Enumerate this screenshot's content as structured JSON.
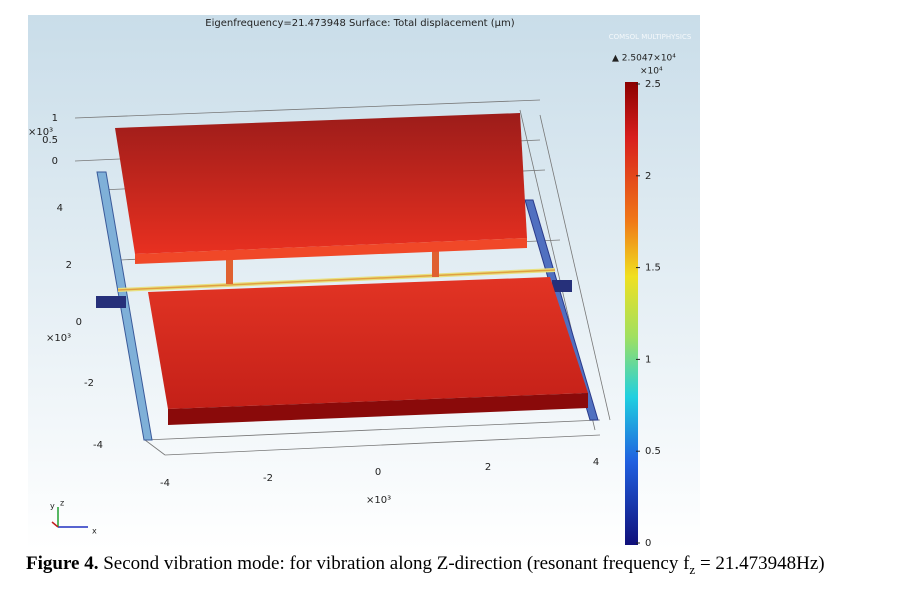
{
  "figure": {
    "title": "Eigenfrequency=21.473948  Surface: Total displacement (μm)",
    "logo": "COMSOL MULTIPHYSICS",
    "colorbar": {
      "max_label": "▲ 2.5047×10⁴",
      "multiplier": "×10⁴",
      "ticks": [
        "2.5",
        "2",
        "1.5",
        "1",
        "0.5",
        "0"
      ]
    },
    "z_axis": {
      "multiplier": "×10³",
      "ticks": [
        "1",
        "0.5",
        "0"
      ]
    },
    "y_axis": {
      "multiplier": "×10³",
      "ticks": [
        "4",
        "2",
        "0",
        "-2",
        "-4"
      ]
    },
    "x_axis": {
      "multiplier": "×10³",
      "ticks": [
        "-4",
        "-2",
        "0",
        "2",
        "4"
      ]
    },
    "triad": [
      "y",
      "z",
      "x"
    ]
  },
  "caption": {
    "label": "Figure 4.",
    "text": " Second vibration mode: for vibration along Z-direction (resonant frequency f",
    "subscript": "z",
    "text_end": " = 21.473948Hz)"
  }
}
